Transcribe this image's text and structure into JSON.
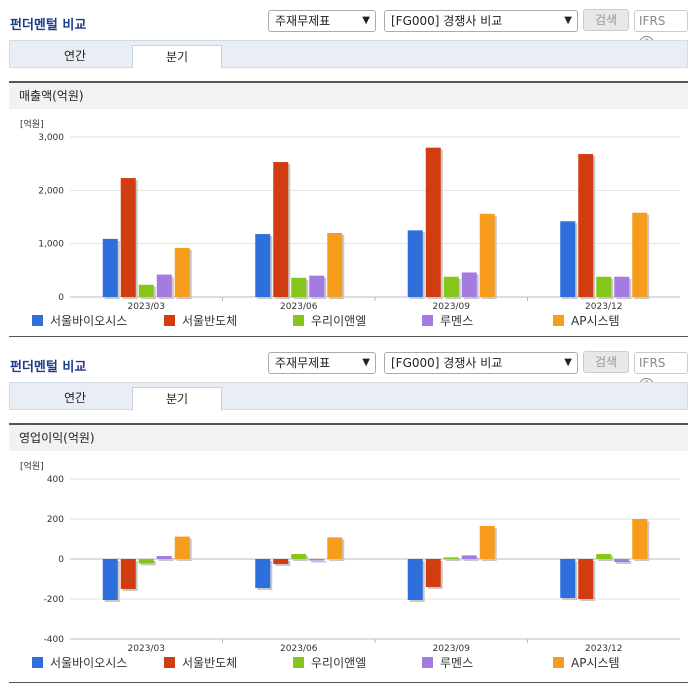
{
  "panels": [
    {
      "title": "펀더멘털 비교",
      "select1": "주재무제표",
      "select2": "[FG000] 경쟁사 비교",
      "search_label": "검색",
      "ifrs_label": "IFRS",
      "tabs": [
        "연간",
        "분기"
      ],
      "active_tab": "분기",
      "metric": "매출액(억원)"
    },
    {
      "title": "펀더멘털 비교",
      "select1": "주재무제표",
      "select2": "[FG000] 경쟁사 비교",
      "search_label": "검색",
      "ifrs_label": "IFRS",
      "tabs": [
        "연간",
        "분기"
      ],
      "active_tab": "분기",
      "metric": "영업이익(억원)"
    }
  ],
  "colors": [
    "#2f6fdc",
    "#d13c10",
    "#86c61a",
    "#a47be0",
    "#f79d1e"
  ],
  "chart_data": [
    {
      "type": "bar",
      "unit_label": "[억원]",
      "categories": [
        "2023/03",
        "2023/06",
        "2023/09",
        "2023/12"
      ],
      "ylim": [
        0,
        3000
      ],
      "yticks": [
        "0",
        "1,000",
        "2,000",
        "3,000"
      ],
      "ytick_values": [
        0,
        1000,
        2000,
        3000
      ],
      "legend_position": "bottom",
      "series": [
        {
          "name": "서울바이오시스",
          "values": [
            1090,
            1180,
            1250,
            1420
          ]
        },
        {
          "name": "서울반도체",
          "values": [
            2230,
            2530,
            2800,
            2680
          ]
        },
        {
          "name": "우리이앤엘",
          "values": [
            230,
            360,
            380,
            380
          ]
        },
        {
          "name": "루멘스",
          "values": [
            420,
            400,
            460,
            380
          ]
        },
        {
          "name": "AP시스템",
          "values": [
            920,
            1200,
            1560,
            1580
          ]
        }
      ]
    },
    {
      "type": "bar",
      "unit_label": "[억원]",
      "categories": [
        "2023/03",
        "2023/06",
        "2023/09",
        "2023/12"
      ],
      "ylim": [
        -400,
        400
      ],
      "yticks": [
        "-400",
        "-200",
        "0",
        "200",
        "400"
      ],
      "ytick_values": [
        -400,
        -200,
        0,
        200,
        400
      ],
      "legend_position": "bottom",
      "series": [
        {
          "name": "서울바이오시스",
          "values": [
            -205,
            -145,
            -205,
            -195
          ]
        },
        {
          "name": "서울반도체",
          "values": [
            -150,
            -25,
            -140,
            -200
          ]
        },
        {
          "name": "우리이앤엘",
          "values": [
            -22,
            25,
            8,
            25
          ]
        },
        {
          "name": "루멘스",
          "values": [
            15,
            -8,
            18,
            -15
          ]
        },
        {
          "name": "AP시스템",
          "values": [
            112,
            108,
            165,
            200
          ]
        }
      ]
    }
  ]
}
